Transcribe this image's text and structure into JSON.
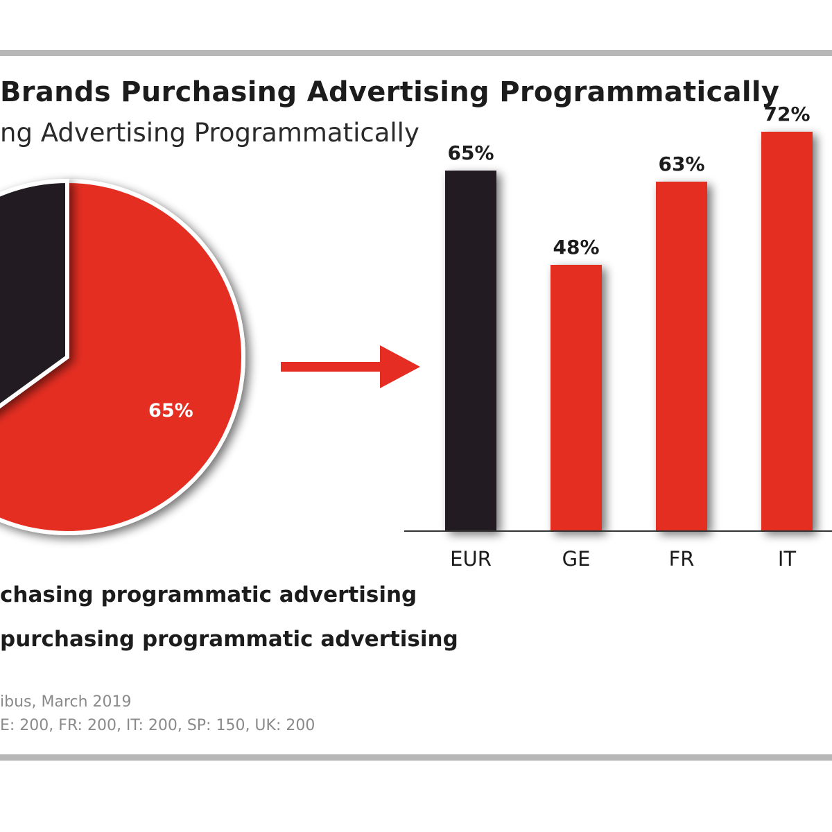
{
  "title": "Brands Purchasing Advertising Programmatically",
  "subtitle": "ng Advertising Programmatically",
  "legend": [
    "chasing programmatic advertising",
    "purchasing programmatic advertising"
  ],
  "source": [
    "ibus, March 2019",
    "E: 200, FR: 200, IT: 200, SP: 150, UK: 200"
  ],
  "colors": {
    "red": "#e52d24",
    "black": "#231f20",
    "axis": "#333333",
    "rule": "#b7b7b7"
  },
  "chart_data": [
    {
      "type": "pie",
      "slices": [
        {
          "value": 65,
          "label": "65%",
          "color": "#e52d24"
        },
        {
          "value": 35,
          "label": "",
          "color": "#231f20"
        }
      ]
    },
    {
      "type": "bar",
      "categories": [
        "EUR",
        "GE",
        "FR",
        "IT"
      ],
      "values": [
        65,
        48,
        63,
        72
      ],
      "value_labels": [
        "65%",
        "48%",
        "63%",
        "72%"
      ],
      "colors": [
        "#231f20",
        "#e52d24",
        "#e52d24",
        "#e52d24"
      ],
      "ylim": [
        0,
        80
      ]
    }
  ]
}
